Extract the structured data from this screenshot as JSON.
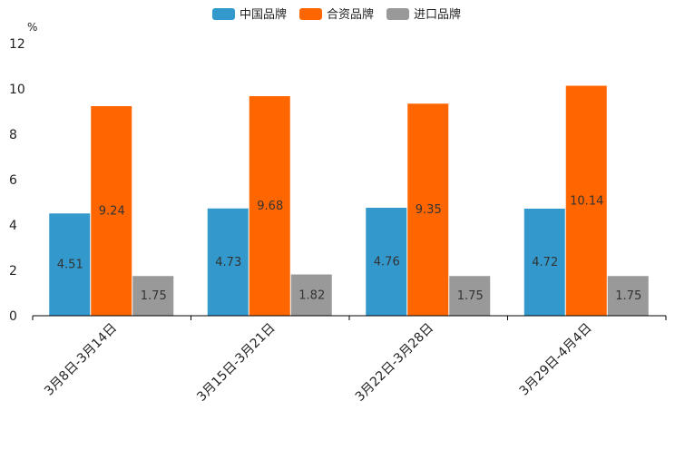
{
  "chart_data": {
    "type": "bar",
    "title": "",
    "ylabel": "%",
    "xlabel": "",
    "ylim": [
      0,
      12
    ],
    "yticks": [
      0,
      2,
      4,
      6,
      8,
      10,
      12
    ],
    "categories": [
      "3月8日-3月14日",
      "3月15日-3月21日",
      "3月22日-3月28日",
      "3月29日-4月4日"
    ],
    "series": [
      {
        "name": "中国品牌",
        "color": "#3399cc",
        "values": [
          4.51,
          4.73,
          4.76,
          4.72
        ]
      },
      {
        "name": "合资品牌",
        "color": "#ff6600",
        "values": [
          9.24,
          9.68,
          9.35,
          10.14
        ]
      },
      {
        "name": "进口品牌",
        "color": "#999999",
        "values": [
          1.75,
          1.82,
          1.75,
          1.75
        ]
      }
    ],
    "legend_position": "top-center"
  }
}
